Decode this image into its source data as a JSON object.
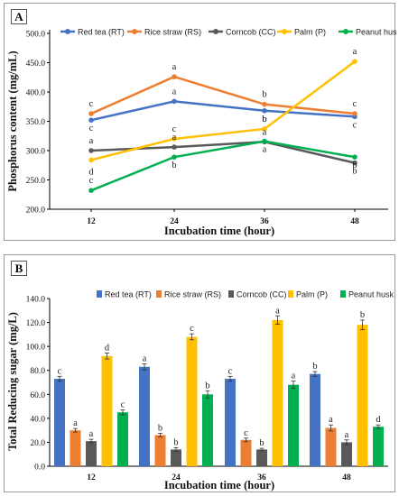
{
  "chart_data": [
    {
      "panel_label": "A",
      "type": "line",
      "xlabel": "Incubation time (hour)",
      "ylabel": "Phosphorus content (mg/mL)",
      "categories": [
        "12",
        "24",
        "36",
        "48"
      ],
      "ylim": [
        200,
        500
      ],
      "yticks": [
        "200.0",
        "250.0",
        "300.0",
        "350.0",
        "400.0",
        "450.0",
        "500.0"
      ],
      "legend_position": "top",
      "series": [
        {
          "name": "Red tea (RT)",
          "color": "#4472C4",
          "values": [
            352,
            384,
            368,
            358
          ],
          "letters": [
            "c",
            "a",
            "b",
            "c"
          ]
        },
        {
          "name": "Rice straw (RS)",
          "color": "#ED7D31",
          "values": [
            363,
            426,
            379,
            363
          ],
          "letters": [
            "c",
            "a",
            "b",
            "c"
          ]
        },
        {
          "name": "Corncob (CC)",
          "color": "#595959",
          "values": [
            300,
            306,
            315,
            279
          ],
          "letters": [
            "a",
            "a",
            "a",
            "b"
          ]
        },
        {
          "name": "Palm (P)",
          "color": "#FFC000",
          "values": [
            284,
            320,
            337,
            452
          ],
          "letters": [
            "d",
            "c",
            "b",
            "a"
          ]
        },
        {
          "name": "Peanut husk (PH)",
          "color": "#00B050",
          "values": [
            232,
            289,
            316,
            289
          ],
          "letters": [
            "c",
            "b",
            "a",
            "b"
          ]
        }
      ]
    },
    {
      "panel_label": "B",
      "type": "bar",
      "xlabel": "Incubation time (hour)",
      "ylabel": "Total Reducing sugar (mg/L)",
      "categories": [
        "12",
        "24",
        "36",
        "48"
      ],
      "ylim": [
        0,
        140
      ],
      "yticks": [
        "0.0",
        "20.0",
        "40.0",
        "60.0",
        "80.0",
        "100.0",
        "120.0",
        "140.0"
      ],
      "legend_position": "top",
      "series": [
        {
          "name": "Red tea (RT)",
          "color": "#4472C4",
          "values": [
            73,
            83,
            73,
            77
          ],
          "errors": [
            2,
            2.5,
            2,
            2
          ],
          "letters": [
            "c",
            "a",
            "c",
            "b"
          ]
        },
        {
          "name": "Rice straw (RS)",
          "color": "#ED7D31",
          "values": [
            30,
            26,
            22,
            32
          ],
          "errors": [
            1.5,
            1.5,
            1.5,
            2.5
          ],
          "letters": [
            "a",
            "b",
            "c",
            "a"
          ]
        },
        {
          "name": "Corncob (CC)",
          "color": "#595959",
          "values": [
            21,
            14,
            14,
            20
          ],
          "errors": [
            1.5,
            1.5,
            1,
            2
          ],
          "letters": [
            "a",
            "b",
            "b",
            "a"
          ]
        },
        {
          "name": "Palm (P)",
          "color": "#FFC000",
          "values": [
            92,
            108,
            122,
            118
          ],
          "errors": [
            2.5,
            2.5,
            3.5,
            4
          ],
          "letters": [
            "d",
            "c",
            "a",
            "b"
          ]
        },
        {
          "name": "Peanut husk (PH)",
          "color": "#00B050",
          "values": [
            45,
            60,
            68,
            33
          ],
          "errors": [
            2,
            3,
            3,
            1.5
          ],
          "letters": [
            "c",
            "b",
            "a",
            "d"
          ]
        }
      ]
    }
  ]
}
